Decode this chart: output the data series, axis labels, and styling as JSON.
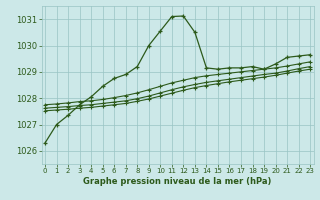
{
  "title": "Graphe pression niveau de la mer (hPa)",
  "bg_color": "#cce8e8",
  "grid_color": "#99c4c4",
  "line_color": "#2d5a1b",
  "ylim": [
    1025.5,
    1031.5
  ],
  "xlim": [
    -0.3,
    23.3
  ],
  "yticks": [
    1026,
    1027,
    1028,
    1029,
    1030,
    1031
  ],
  "xticks": [
    0,
    1,
    2,
    3,
    4,
    5,
    6,
    7,
    8,
    9,
    10,
    11,
    12,
    13,
    14,
    15,
    16,
    17,
    18,
    19,
    20,
    21,
    22,
    23
  ],
  "line1": [
    1026.3,
    1027.0,
    1027.35,
    1027.75,
    1028.05,
    1028.45,
    1028.75,
    1028.9,
    1029.2,
    1030.0,
    1030.55,
    1031.1,
    1031.12,
    1030.5,
    1029.15,
    1029.1,
    1029.15,
    1029.15,
    1029.2,
    1029.1,
    1029.3,
    1029.55,
    1029.6,
    1029.65
  ],
  "line2": [
    1027.75,
    1027.78,
    1027.82,
    1027.87,
    1027.9,
    1027.95,
    1028.02,
    1028.1,
    1028.2,
    1028.32,
    1028.45,
    1028.58,
    1028.68,
    1028.78,
    1028.85,
    1028.9,
    1028.95,
    1029.0,
    1029.05,
    1029.1,
    1029.15,
    1029.22,
    1029.3,
    1029.38
  ],
  "line3": [
    1027.62,
    1027.65,
    1027.68,
    1027.72,
    1027.75,
    1027.8,
    1027.85,
    1027.9,
    1027.98,
    1028.08,
    1028.2,
    1028.32,
    1028.43,
    1028.52,
    1028.6,
    1028.66,
    1028.72,
    1028.78,
    1028.84,
    1028.9,
    1028.95,
    1029.03,
    1029.12,
    1029.2
  ],
  "line4": [
    1027.52,
    1027.55,
    1027.58,
    1027.62,
    1027.65,
    1027.7,
    1027.75,
    1027.8,
    1027.88,
    1027.97,
    1028.08,
    1028.19,
    1028.3,
    1028.4,
    1028.48,
    1028.55,
    1028.62,
    1028.68,
    1028.74,
    1028.8,
    1028.87,
    1028.95,
    1029.03,
    1029.1
  ]
}
